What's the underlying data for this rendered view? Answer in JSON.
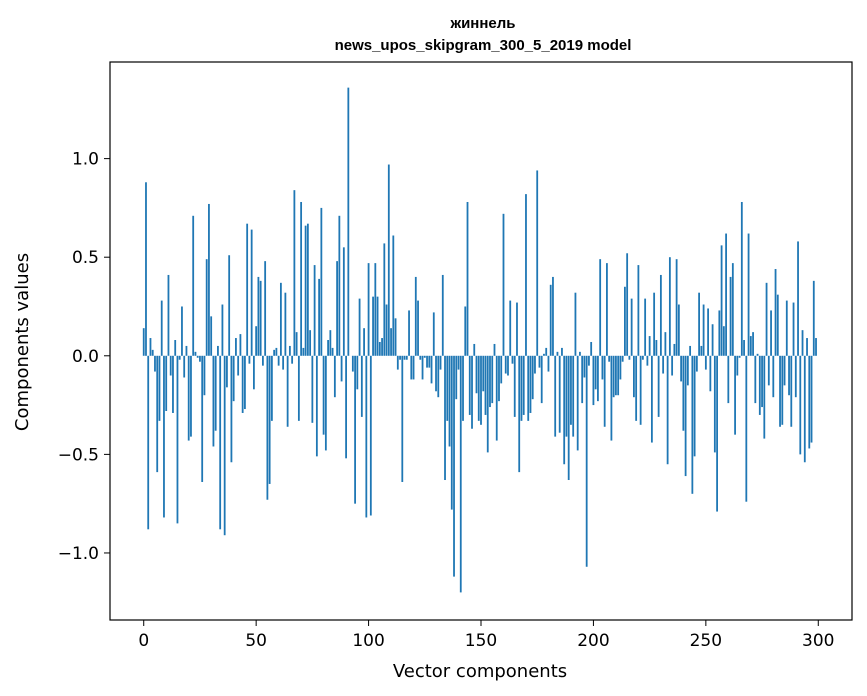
{
  "chart_data": {
    "type": "bar",
    "title_line1": "жиннель",
    "title_line2": "news_upos_skipgram_300_5_2019 model",
    "xlabel": "Vector components",
    "ylabel": "Components values",
    "xlim": [
      -15,
      315
    ],
    "ylim": [
      -1.34,
      1.49
    ],
    "xticks": [
      0,
      50,
      100,
      150,
      200,
      250,
      300
    ],
    "xtick_labels": [
      "0",
      "50",
      "100",
      "150",
      "200",
      "250",
      "300"
    ],
    "yticks": [
      -1.0,
      -0.5,
      0.0,
      0.5,
      1.0
    ],
    "ytick_labels": [
      "−1.0",
      "−0.5",
      "0.0",
      "0.5",
      "1.0"
    ],
    "bar_color": "#1f77b4",
    "grid": false,
    "values": [
      0.14,
      0.88,
      -0.88,
      0.09,
      0.03,
      -0.08,
      -0.59,
      -0.33,
      0.28,
      -0.82,
      -0.28,
      0.41,
      -0.1,
      -0.29,
      0.08,
      -0.85,
      -0.02,
      0.25,
      -0.11,
      0.05,
      -0.43,
      -0.41,
      0.71,
      0.02,
      -0.01,
      -0.03,
      -0.64,
      -0.2,
      0.49,
      0.77,
      0.2,
      -0.46,
      -0.38,
      0.05,
      -0.88,
      0.26,
      -0.91,
      -0.16,
      0.51,
      -0.54,
      -0.23,
      0.09,
      -0.1,
      0.11,
      -0.29,
      -0.27,
      0.67,
      -0.04,
      0.64,
      -0.17,
      0.15,
      0.4,
      0.38,
      -0.05,
      0.48,
      -0.73,
      -0.65,
      -0.33,
      0.03,
      0.04,
      -0.05,
      0.37,
      -0.07,
      0.32,
      -0.36,
      0.05,
      -0.04,
      0.84,
      0.12,
      -0.33,
      0.78,
      0.04,
      0.66,
      0.67,
      0.13,
      -0.34,
      0.46,
      -0.51,
      0.39,
      0.75,
      -0.4,
      -0.48,
      0.08,
      0.13,
      0.04,
      -0.21,
      0.48,
      0.71,
      -0.13,
      0.55,
      -0.52,
      1.36,
      0.0,
      -0.08,
      -0.75,
      -0.17,
      0.29,
      -0.31,
      0.14,
      -0.82,
      0.47,
      -0.81,
      0.3,
      0.47,
      0.3,
      0.07,
      0.09,
      0.57,
      0.26,
      0.97,
      0.14,
      0.61,
      0.19,
      -0.07,
      -0.02,
      -0.64,
      -0.02,
      -0.02,
      0.23,
      -0.12,
      -0.12,
      0.4,
      0.28,
      -0.02,
      -0.12,
      -0.01,
      -0.06,
      -0.06,
      -0.14,
      0.22,
      -0.18,
      -0.21,
      -0.07,
      0.41,
      -0.63,
      -0.33,
      -0.46,
      -0.78,
      -1.12,
      -0.22,
      -0.07,
      -1.2,
      -0.33,
      0.25,
      0.78,
      -0.3,
      -0.37,
      0.06,
      -0.19,
      -0.33,
      -0.35,
      -0.18,
      -0.3,
      -0.49,
      -0.26,
      -0.24,
      0.06,
      -0.43,
      -0.23,
      -0.14,
      0.72,
      -0.09,
      -0.1,
      0.28,
      -0.04,
      -0.31,
      0.27,
      -0.59,
      -0.33,
      -0.3,
      0.82,
      -0.33,
      -0.29,
      -0.22,
      -0.09,
      0.94,
      -0.06,
      -0.24,
      0.01,
      0.04,
      -0.08,
      0.36,
      0.4,
      -0.41,
      0.02,
      -0.39,
      0.04,
      -0.55,
      -0.41,
      -0.63,
      -0.35,
      -0.41,
      0.32,
      -0.48,
      0.02,
      -0.24,
      -0.11,
      -1.07,
      -0.05,
      0.07,
      -0.25,
      -0.17,
      -0.23,
      0.49,
      -0.12,
      -0.36,
      0.47,
      -0.03,
      -0.43,
      -0.21,
      -0.2,
      -0.2,
      -0.12,
      -0.03,
      0.35,
      0.52,
      -0.02,
      0.29,
      -0.21,
      -0.33,
      0.46,
      -0.35,
      -0.02,
      0.29,
      -0.05,
      0.1,
      -0.44,
      0.32,
      0.08,
      -0.31,
      0.41,
      -0.09,
      0.12,
      -0.55,
      0.5,
      -0.1,
      0.06,
      0.49,
      0.26,
      -0.13,
      -0.38,
      -0.61,
      -0.15,
      0.05,
      -0.7,
      -0.51,
      -0.08,
      0.32,
      0.05,
      0.26,
      -0.07,
      0.24,
      -0.18,
      0.16,
      -0.49,
      -0.79,
      0.23,
      0.56,
      0.15,
      0.62,
      -0.24,
      0.4,
      0.47,
      -0.4,
      -0.1,
      -0.01,
      0.78,
      0.08,
      -0.74,
      0.62,
      0.1,
      0.12,
      -0.24,
      0.01,
      -0.3,
      -0.26,
      -0.42,
      0.37,
      -0.15,
      0.23,
      -0.21,
      0.44,
      0.31,
      -0.36,
      -0.35,
      -0.15,
      0.28,
      -0.2,
      -0.36,
      0.27,
      -0.21,
      0.58,
      -0.5,
      0.13,
      -0.54,
      0.09,
      -0.47,
      -0.44,
      0.38,
      0.09
    ]
  }
}
